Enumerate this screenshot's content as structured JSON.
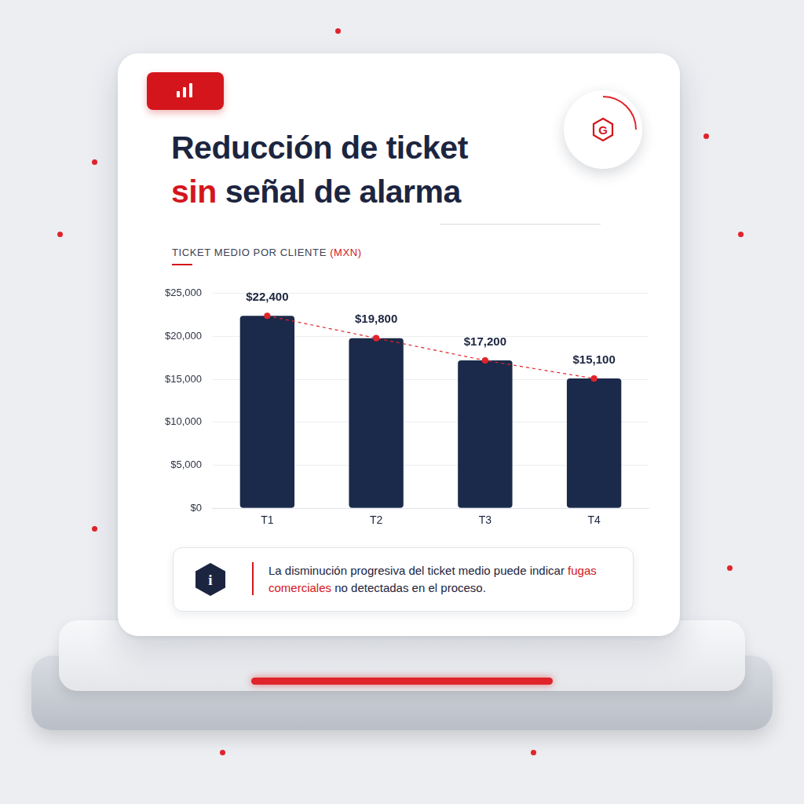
{
  "chart_data": {
    "type": "bar",
    "title": [
      [
        {
          "text": "Reducción de ticket"
        }
      ],
      [
        {
          "text": "sin",
          "color": "#d4161c"
        },
        {
          "text": " señal de alarma"
        }
      ]
    ],
    "subtitle": [
      {
        "text": "TICKET MEDIO POR CLIENTE "
      },
      {
        "text": "(MXN)",
        "color": "#d4161c"
      }
    ],
    "categories": [
      "T1",
      "T2",
      "T3",
      "T4"
    ],
    "series": [
      {
        "type": "bar",
        "color": "#1b2a4a",
        "values": [
          22400,
          19800,
          17200,
          15100
        ],
        "value_labels": [
          "$22,400",
          "$19,800",
          "$17,200",
          "$15,100"
        ]
      },
      {
        "type": "line",
        "color": "#e0242b",
        "line_style": "dashed",
        "marker": "circle",
        "values": [
          22400,
          19800,
          17200,
          15100
        ]
      }
    ],
    "ylim": [
      0,
      25000
    ],
    "yticks": [
      {
        "value": 0,
        "label": "$0"
      },
      {
        "value": 5000,
        "label": "$5,000"
      },
      {
        "value": 10000,
        "label": "$10,000"
      },
      {
        "value": 15000,
        "label": "$15,000"
      },
      {
        "value": 20000,
        "label": "$20,000"
      },
      {
        "value": 25000,
        "label": "$25,000"
      }
    ],
    "grid": true,
    "data_labels": true,
    "annotation": [
      {
        "text": "La disminución progresiva del ticket medio puede indicar "
      },
      {
        "text": "fugas comerciales",
        "color": "#d4161c"
      },
      {
        "text": " no detectadas en el proceso."
      }
    ],
    "annotation_icon": "i"
  },
  "logo": "G"
}
